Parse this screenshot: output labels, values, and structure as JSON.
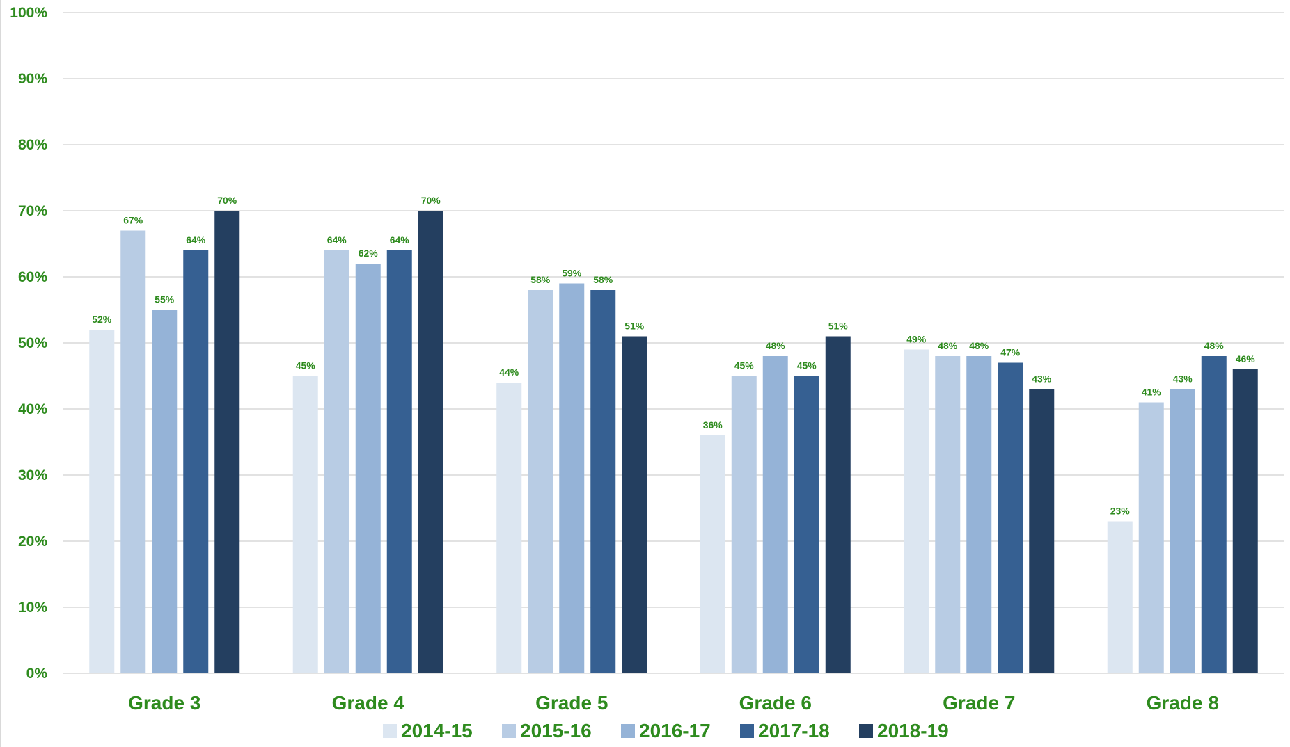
{
  "chart_data": {
    "type": "bar",
    "title": "",
    "xlabel": "",
    "ylabel": "",
    "ylim": [
      0,
      100
    ],
    "y_ticks": [
      "0%",
      "10%",
      "20%",
      "30%",
      "40%",
      "50%",
      "60%",
      "70%",
      "80%",
      "90%",
      "100%"
    ],
    "grid": true,
    "legend_position": "bottom",
    "categories": [
      "Grade 3",
      "Grade 4",
      "Grade 5",
      "Grade 6",
      "Grade 7",
      "Grade 8"
    ],
    "series": [
      {
        "name": "2014-15",
        "color": "#dce6f1",
        "values": [
          52,
          45,
          44,
          36,
          49,
          23
        ]
      },
      {
        "name": "2015-16",
        "color": "#b8cce4",
        "values": [
          67,
          64,
          58,
          45,
          48,
          41
        ]
      },
      {
        "name": "2016-17",
        "color": "#95b3d7",
        "values": [
          55,
          62,
          59,
          48,
          48,
          43
        ]
      },
      {
        "name": "2017-18",
        "color": "#366092",
        "values": [
          64,
          64,
          58,
          45,
          47,
          48
        ]
      },
      {
        "name": "2018-19",
        "color": "#243f60",
        "values": [
          70,
          70,
          51,
          51,
          43,
          46
        ]
      }
    ],
    "label_color": "#2e8b1e",
    "gridline_color": "#d9d9d9"
  }
}
